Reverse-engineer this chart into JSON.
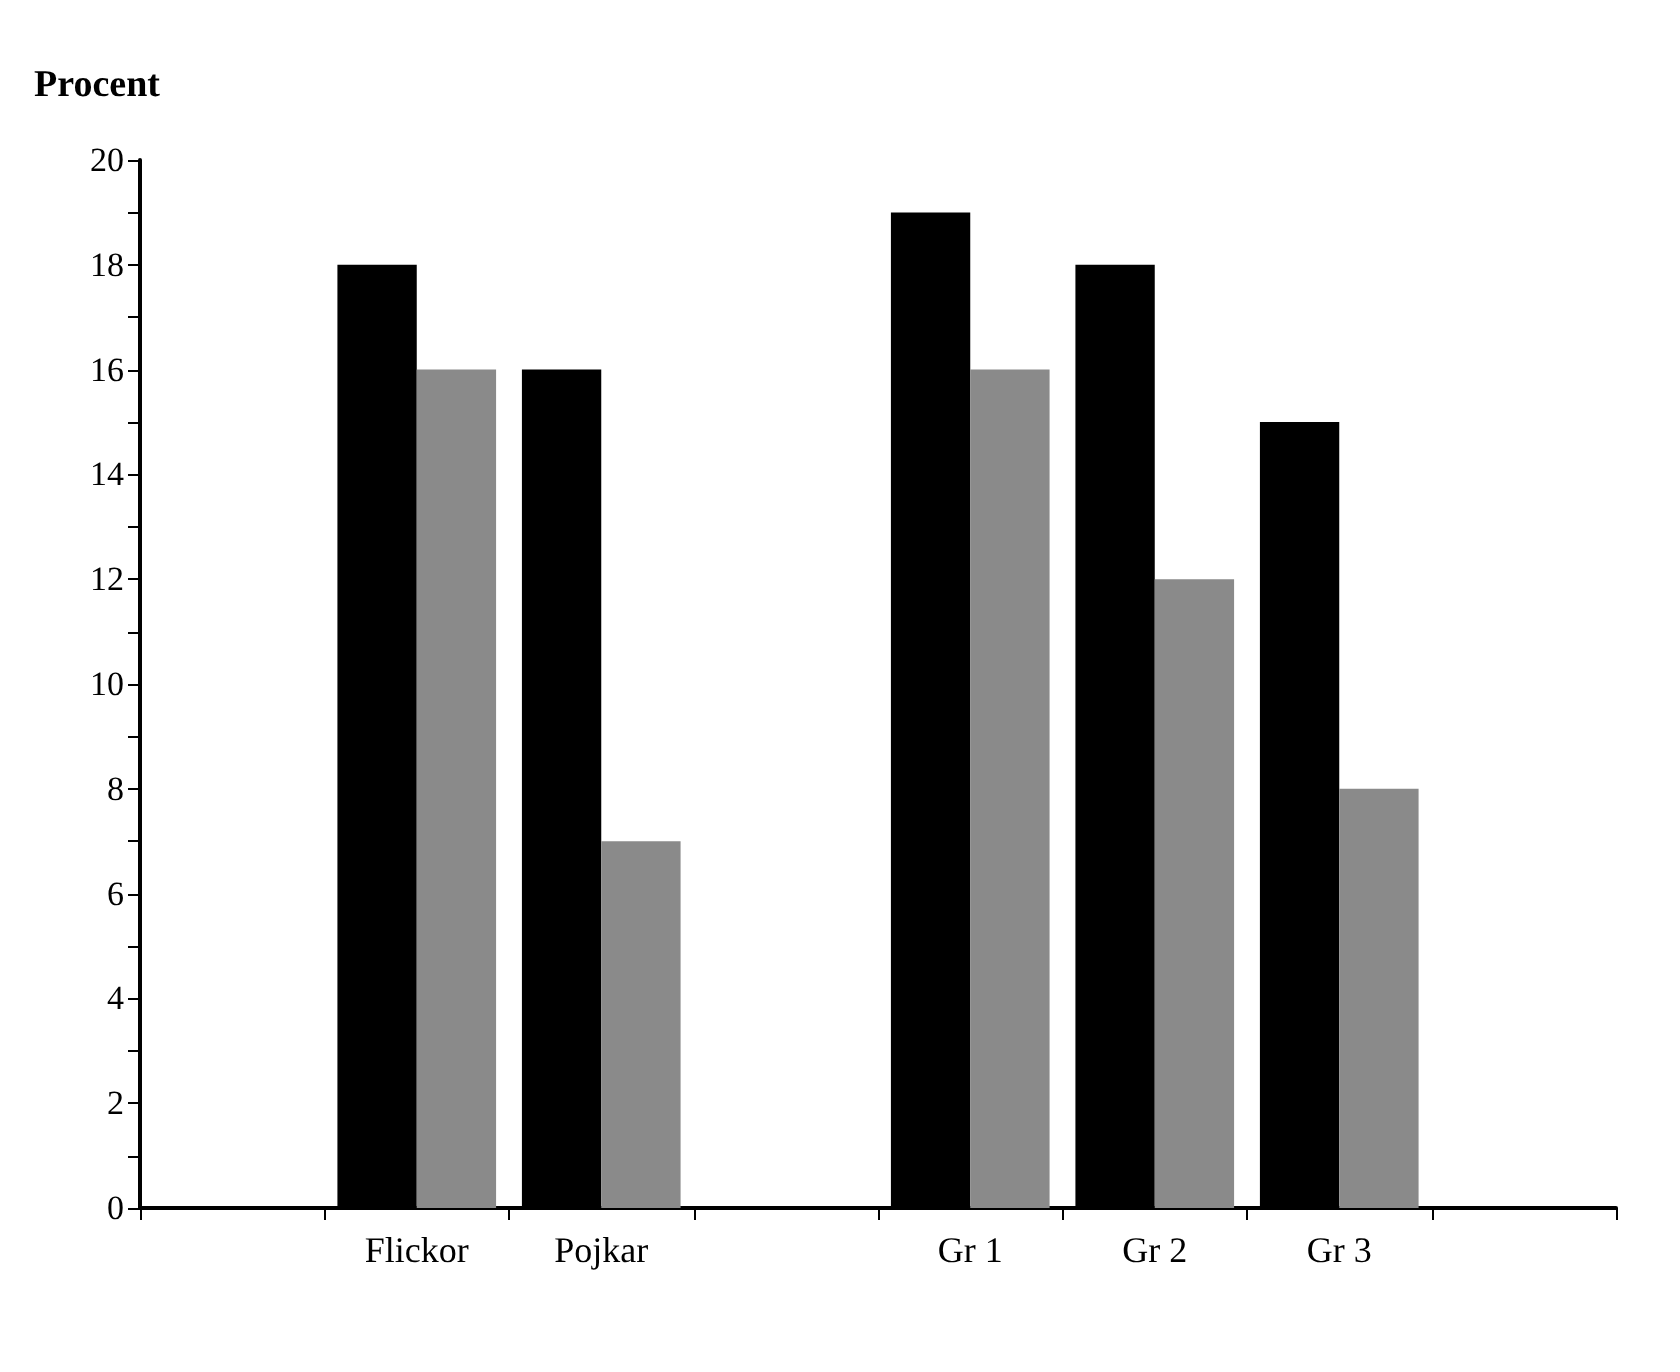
{
  "chart_data": {
    "type": "bar",
    "ylabel": "Procent",
    "categories": [
      null,
      "Flickor",
      "Pojkar",
      null,
      "Gr 1",
      "Gr 2",
      "Gr 3",
      null
    ],
    "series": [
      {
        "color": "#000000",
        "values": [
          null,
          18,
          16,
          null,
          19,
          18,
          15,
          null
        ]
      },
      {
        "color": "#8a8a8a",
        "values": [
          null,
          16,
          7,
          null,
          16,
          12,
          8,
          null
        ]
      }
    ],
    "ylim": [
      0,
      20
    ],
    "yticks": [
      0,
      {
        "value": 1,
        "label": null
      },
      2,
      {
        "value": 3,
        "label": null
      },
      4,
      {
        "value": 5,
        "label": null
      },
      6,
      {
        "value": 7,
        "label": null
      },
      8,
      {
        "value": 9,
        "label": null
      },
      10,
      {
        "value": 11,
        "label": null
      },
      12,
      {
        "value": 13,
        "label": null
      },
      14,
      {
        "value": 15,
        "label": null
      },
      16,
      {
        "value": 17,
        "label": null
      },
      18,
      {
        "value": 19,
        "label": null
      },
      20
    ],
    "grid": false
  }
}
